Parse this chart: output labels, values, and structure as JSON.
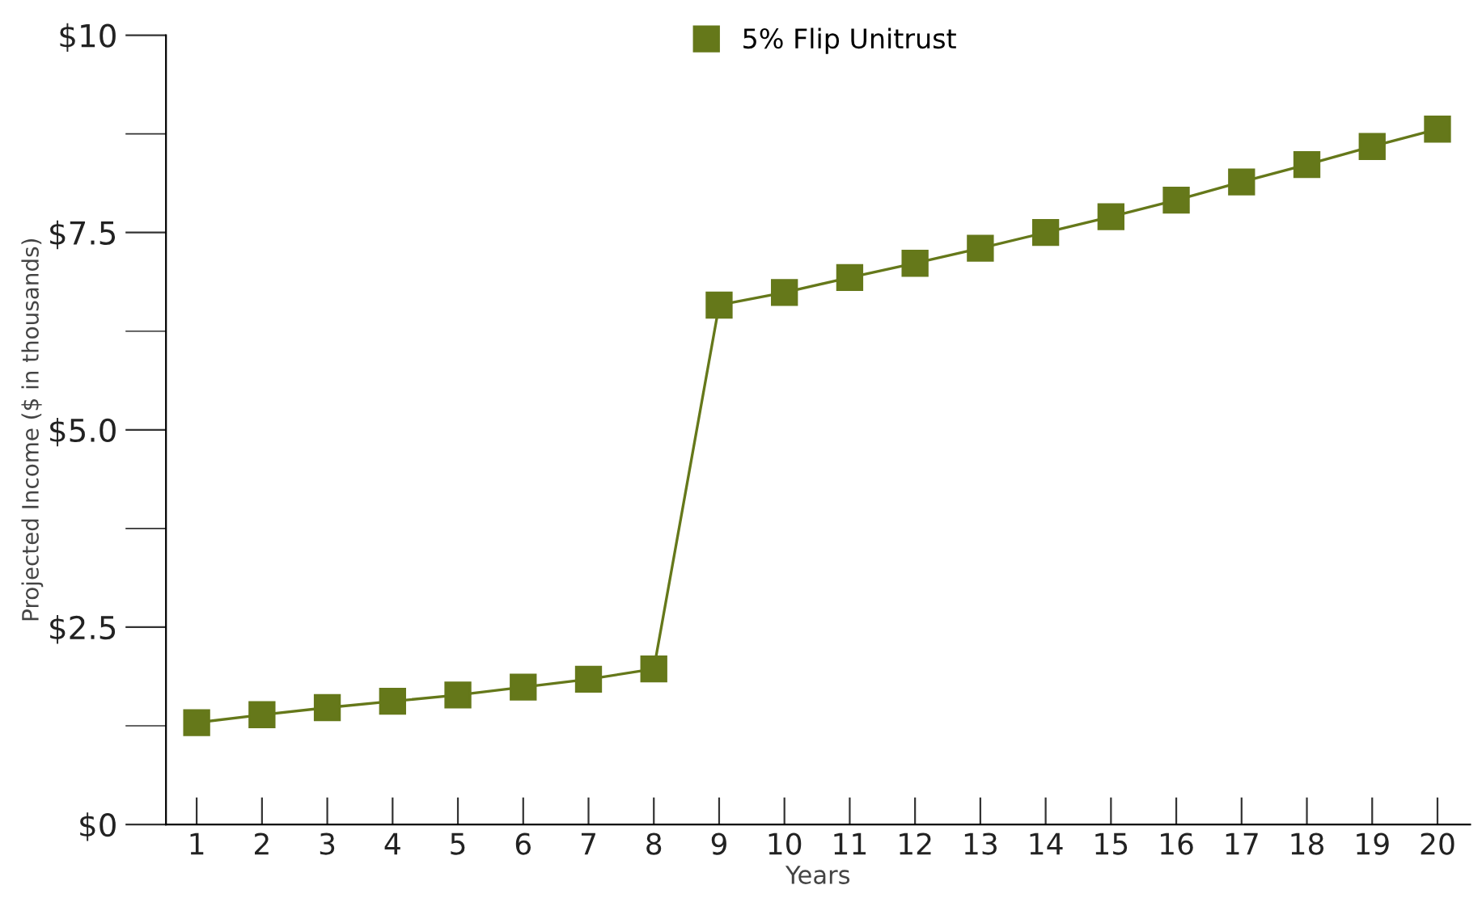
{
  "chart_data": {
    "type": "line",
    "xlabel": "Years",
    "ylabel": "Projected Income ($ in thousands)",
    "categories": [
      "1",
      "2",
      "3",
      "4",
      "5",
      "6",
      "7",
      "8",
      "9",
      "10",
      "11",
      "12",
      "13",
      "14",
      "15",
      "16",
      "17",
      "18",
      "19",
      "20"
    ],
    "series": [
      {
        "name": "5% Flip Unitrust",
        "color": "#65781a",
        "values": [
          1.29,
          1.39,
          1.48,
          1.56,
          1.64,
          1.74,
          1.84,
          1.97,
          6.58,
          6.74,
          6.93,
          7.11,
          7.3,
          7.5,
          7.7,
          7.91,
          8.14,
          8.36,
          8.59,
          8.81
        ]
      }
    ],
    "ylim": [
      0,
      10
    ],
    "yticks": [
      {
        "value": 0,
        "label": "$0"
      },
      {
        "value": 2.5,
        "label": "$2.5"
      },
      {
        "value": 5,
        "label": "$5.0"
      },
      {
        "value": 7.5,
        "label": "$7.5"
      },
      {
        "value": 10,
        "label": "$10"
      }
    ],
    "marker": "square",
    "line_style": "solid",
    "legend": "top",
    "grid": false
  }
}
